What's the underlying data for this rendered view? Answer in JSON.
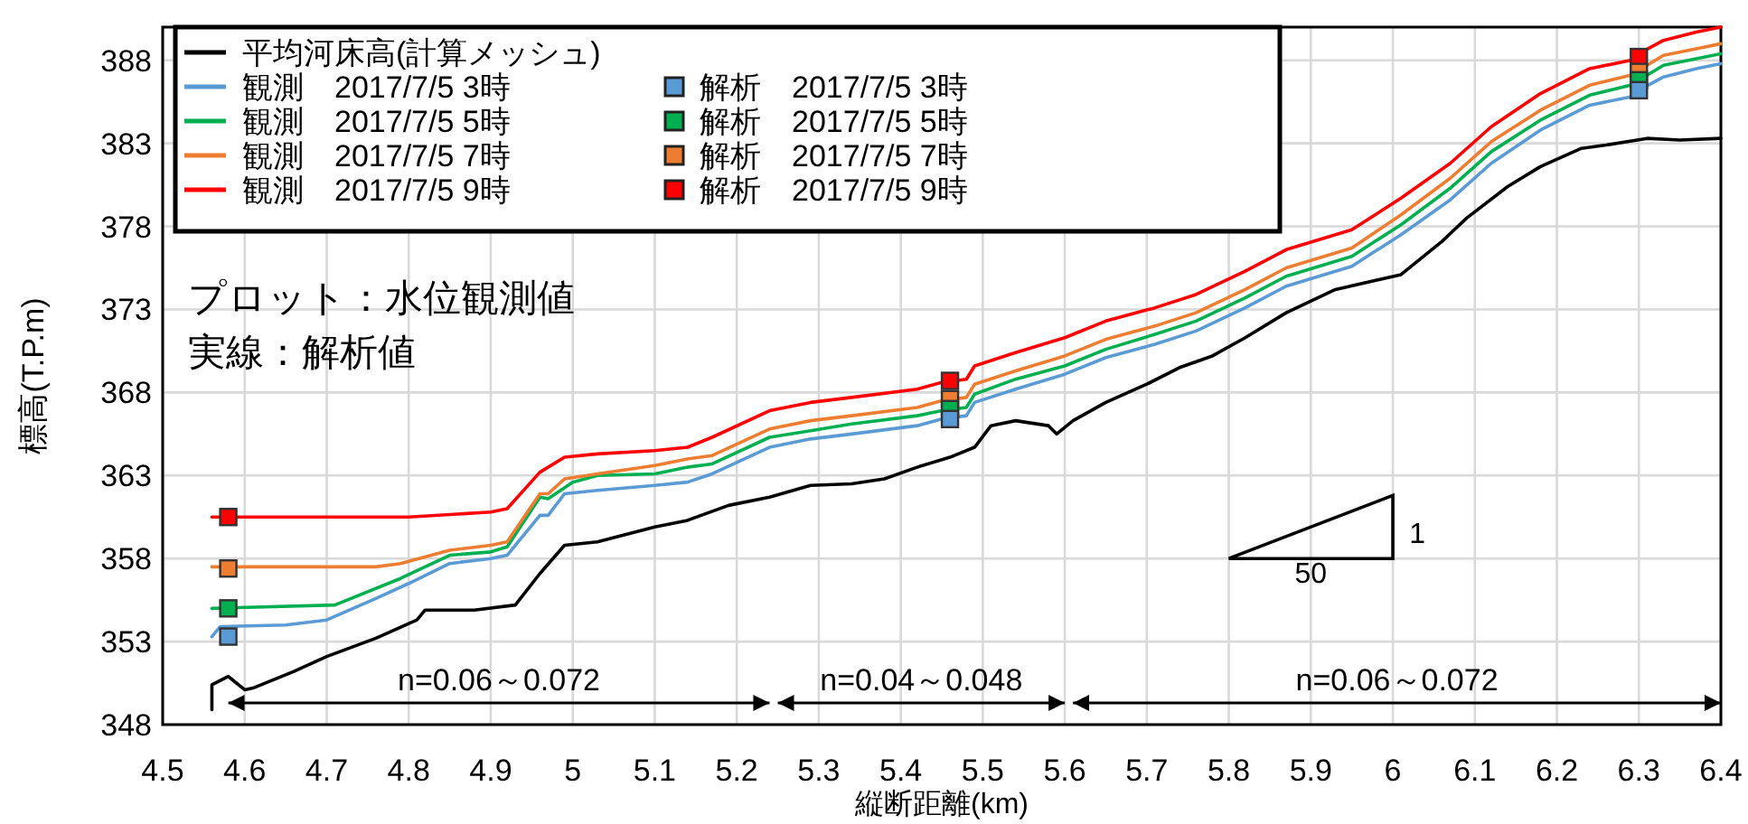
{
  "chart_data": {
    "type": "line",
    "xlabel": "縦断距離(km)",
    "ylabel": "標高(T.P.m)",
    "xlim": [
      4.5,
      6.4
    ],
    "ylim": [
      348,
      390
    ],
    "xticks": [
      4.5,
      4.6,
      4.7,
      4.8,
      4.9,
      5,
      5.1,
      5.2,
      5.3,
      5.4,
      5.5,
      5.6,
      5.7,
      5.8,
      5.9,
      6,
      6.1,
      6.2,
      6.3,
      6.4
    ],
    "yticks": [
      348,
      353,
      358,
      363,
      368,
      373,
      378,
      383,
      388
    ],
    "grid": true,
    "legend": "top left",
    "line_style": "solid",
    "series": [
      {
        "name": "平均河床高(計算メッシュ)",
        "type": "line",
        "color": "#000000",
        "x": [
          4.56,
          4.56,
          4.58,
          4.6,
          4.61,
          4.66,
          4.7,
          4.76,
          4.81,
          4.82,
          4.88,
          4.93,
          4.96,
          4.99,
          5.03,
          5.1,
          5.14,
          5.19,
          5.24,
          5.29,
          5.34,
          5.38,
          5.42,
          5.46,
          5.49,
          5.51,
          5.54,
          5.58,
          5.59,
          5.61,
          5.65,
          5.7,
          5.74,
          5.78,
          5.82,
          5.87,
          5.93,
          6.01,
          6.06,
          6.09,
          6.14,
          6.18,
          6.23,
          6.26,
          6.31,
          6.35,
          6.4
        ],
        "values": [
          348.9,
          350.4,
          350.9,
          350.1,
          350.2,
          351.2,
          352.1,
          353.2,
          354.3,
          354.9,
          354.9,
          355.2,
          357.1,
          358.8,
          359,
          359.9,
          360.3,
          361.2,
          361.7,
          362.4,
          362.5,
          362.8,
          363.5,
          364.1,
          364.7,
          366,
          366.3,
          366,
          365.5,
          366.3,
          367.4,
          368.5,
          369.5,
          370.2,
          371.3,
          372.8,
          374.2,
          375.1,
          377.1,
          378.5,
          380.4,
          381.6,
          382.7,
          382.9,
          383.3,
          383.2,
          383.3
        ]
      },
      {
        "name": "観測　2017/7/5 3時",
        "type": "line",
        "color": "#5b9bd5",
        "x": [
          4.56,
          4.57,
          4.65,
          4.7,
          4.76,
          4.8,
          4.85,
          4.9,
          4.92,
          4.96,
          4.97,
          4.99,
          5.03,
          5.1,
          5.14,
          5.17,
          5.24,
          5.29,
          5.34,
          5.42,
          5.45,
          5.48,
          5.49,
          5.54,
          5.6,
          5.65,
          5.71,
          5.76,
          5.82,
          5.87,
          5.95,
          6.01,
          6.07,
          6.12,
          6.18,
          6.24,
          6.29,
          6.3,
          6.33,
          6.37,
          6.4
        ],
        "values": [
          353.3,
          353.9,
          354,
          354.3,
          355.6,
          356.5,
          357.7,
          358,
          358.2,
          360.6,
          360.6,
          361.9,
          362.1,
          362.4,
          362.6,
          363.1,
          364.7,
          365.2,
          365.5,
          366,
          366.4,
          366.6,
          367.4,
          368.2,
          369.1,
          370.1,
          370.9,
          371.7,
          373.1,
          374.4,
          375.6,
          377.5,
          379.6,
          381.8,
          383.8,
          385.3,
          385.8,
          386.2,
          387,
          387.5,
          387.8
        ]
      },
      {
        "name": "観測　2017/7/5 5時",
        "type": "line",
        "color": "#00b050",
        "x": [
          4.56,
          4.71,
          4.79,
          4.85,
          4.9,
          4.92,
          4.96,
          4.97,
          5,
          5.03,
          5.1,
          5.14,
          5.17,
          5.24,
          5.29,
          5.34,
          5.42,
          5.45,
          5.48,
          5.49,
          5.54,
          5.6,
          5.65,
          5.71,
          5.76,
          5.82,
          5.87,
          5.95,
          6.01,
          6.07,
          6.12,
          6.18,
          6.24,
          6.29,
          6.3,
          6.33,
          6.37,
          6.4
        ],
        "values": [
          355,
          355.2,
          356.8,
          358.2,
          358.4,
          358.7,
          361.7,
          361.6,
          362.6,
          363,
          363.1,
          363.5,
          363.7,
          365.3,
          365.7,
          366.1,
          366.6,
          366.9,
          367.1,
          367.9,
          368.8,
          369.6,
          370.6,
          371.5,
          372.3,
          373.7,
          375,
          376.2,
          378.1,
          380.3,
          382.5,
          384.4,
          385.9,
          386.5,
          386.8,
          387.7,
          388.1,
          388.4
        ]
      },
      {
        "name": "観測　2017/7/5 7時",
        "type": "line",
        "color": "#ed7d31",
        "x": [
          4.56,
          4.76,
          4.79,
          4.85,
          4.9,
          4.92,
          4.96,
          4.97,
          4.99,
          5.03,
          5.1,
          5.14,
          5.17,
          5.24,
          5.29,
          5.34,
          5.42,
          5.45,
          5.48,
          5.49,
          5.54,
          5.6,
          5.65,
          5.71,
          5.76,
          5.82,
          5.87,
          5.95,
          6.01,
          6.07,
          6.12,
          6.18,
          6.24,
          6.29,
          6.3,
          6.33,
          6.37,
          6.4
        ],
        "values": [
          357.5,
          357.5,
          357.7,
          358.5,
          358.8,
          359,
          361.9,
          361.9,
          362.8,
          363.1,
          363.6,
          364,
          364.2,
          365.8,
          366.3,
          366.6,
          367.1,
          367.5,
          367.7,
          368.5,
          369.3,
          370.2,
          371.2,
          372,
          372.8,
          374.2,
          375.5,
          376.7,
          378.7,
          380.9,
          383.1,
          385,
          386.5,
          387.1,
          387.4,
          388.3,
          388.7,
          389
        ]
      },
      {
        "name": "観測　2017/7/5 9時",
        "type": "line",
        "color": "#ff0000",
        "x": [
          4.56,
          4.8,
          4.9,
          4.92,
          4.96,
          4.99,
          5.03,
          5.1,
          5.14,
          5.17,
          5.24,
          5.29,
          5.34,
          5.42,
          5.45,
          5.48,
          5.49,
          5.54,
          5.6,
          5.65,
          5.71,
          5.76,
          5.82,
          5.87,
          5.95,
          6.01,
          6.07,
          6.12,
          6.18,
          6.24,
          6.29,
          6.3,
          6.33,
          6.37,
          6.4
        ],
        "values": [
          360.5,
          360.5,
          360.8,
          361,
          363.2,
          364.1,
          364.3,
          364.5,
          364.7,
          365.3,
          366.9,
          367.4,
          367.7,
          368.2,
          368.6,
          368.8,
          369.6,
          370.4,
          371.3,
          372.3,
          373.1,
          373.9,
          375.3,
          376.6,
          377.8,
          379.7,
          381.8,
          384,
          386,
          387.5,
          388,
          388.4,
          389.2,
          389.7,
          390
        ]
      },
      {
        "name": "解析　2017/7/5 3時",
        "type": "scatter",
        "marker": "square",
        "color": "#5b9bd5",
        "x": [
          4.58,
          5.46,
          6.3
        ],
        "values": [
          353.3,
          366.4,
          386.2
        ]
      },
      {
        "name": "解析　2017/7/5 5時",
        "type": "scatter",
        "marker": "square",
        "color": "#00b050",
        "x": [
          4.58,
          5.46,
          6.3
        ],
        "values": [
          355,
          367,
          386.8
        ]
      },
      {
        "name": "解析　2017/7/5 7時",
        "type": "scatter",
        "marker": "square",
        "color": "#ed7d31",
        "x": [
          4.58,
          5.46,
          6.3
        ],
        "values": [
          357.4,
          367.6,
          387.3
        ]
      },
      {
        "name": "解析　2017/7/5 9時",
        "type": "scatter",
        "marker": "square",
        "color": "#ff0000",
        "x": [
          4.58,
          5.46,
          6.3
        ],
        "values": [
          360.5,
          368.7,
          388.2
        ]
      }
    ],
    "annotations": [
      "プロット：水位観測値",
      "実線：解析値",
      "n=0.06～0.072",
      "n=0.04～0.048",
      "n=0.06～0.072",
      "1",
      "50"
    ]
  }
}
